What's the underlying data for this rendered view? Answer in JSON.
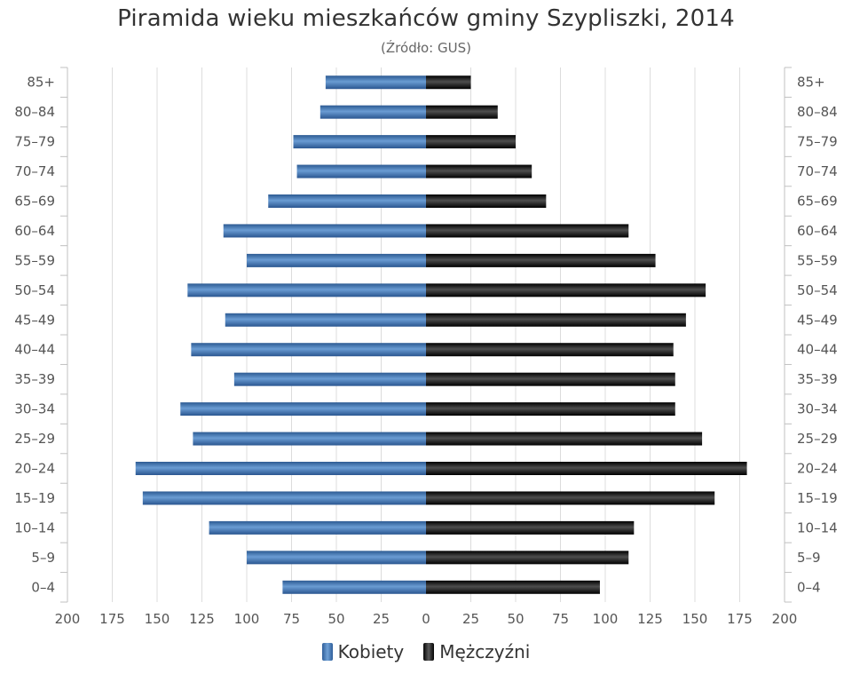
{
  "chart_data": {
    "type": "bar",
    "title": "Piramida wieku mieszkańców gminy Szypliszki, 2014",
    "subtitle": "(Źródło: GUS)",
    "categories": [
      "85+",
      "80–84",
      "75–79",
      "70–74",
      "65–69",
      "60–64",
      "55–59",
      "50–54",
      "45–49",
      "40–44",
      "35–39",
      "30–34",
      "25–29",
      "20–24",
      "15–19",
      "10–14",
      "5–9",
      "0–4"
    ],
    "series": [
      {
        "name": "Kobiety",
        "values": [
          56,
          59,
          74,
          72,
          88,
          113,
          100,
          133,
          112,
          131,
          107,
          137,
          130,
          162,
          158,
          121,
          100,
          80
        ],
        "color": "#3f78b8"
      },
      {
        "name": "Mężczyźni",
        "values": [
          25,
          40,
          50,
          59,
          67,
          113,
          128,
          156,
          145,
          138,
          139,
          139,
          154,
          179,
          161,
          116,
          113,
          97
        ],
        "color": "#111111"
      }
    ],
    "xlim": [
      -200,
      200
    ],
    "x_ticks": [
      200,
      175,
      150,
      125,
      100,
      75,
      50,
      25,
      0,
      25,
      50,
      75,
      100,
      125,
      150,
      175,
      200
    ],
    "grid": true,
    "legend_position": "bottom"
  }
}
